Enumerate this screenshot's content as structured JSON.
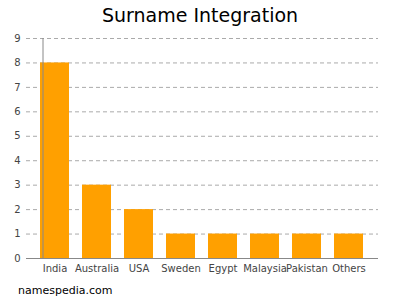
{
  "chart_data": {
    "type": "bar",
    "title": "Surname Integration",
    "categories": [
      "India",
      "Australia",
      "USA",
      "Sweden",
      "Egypt",
      "Malaysia",
      "Pakistan",
      "Others"
    ],
    "values": [
      8,
      3,
      2,
      1,
      1,
      1,
      1,
      1
    ],
    "color": "#ffa000",
    "ylim": [
      0,
      9
    ],
    "yticks": [
      0,
      1,
      2,
      3,
      4,
      5,
      6,
      7,
      8,
      9
    ],
    "grid": true,
    "caption": "namespedia.com"
  }
}
